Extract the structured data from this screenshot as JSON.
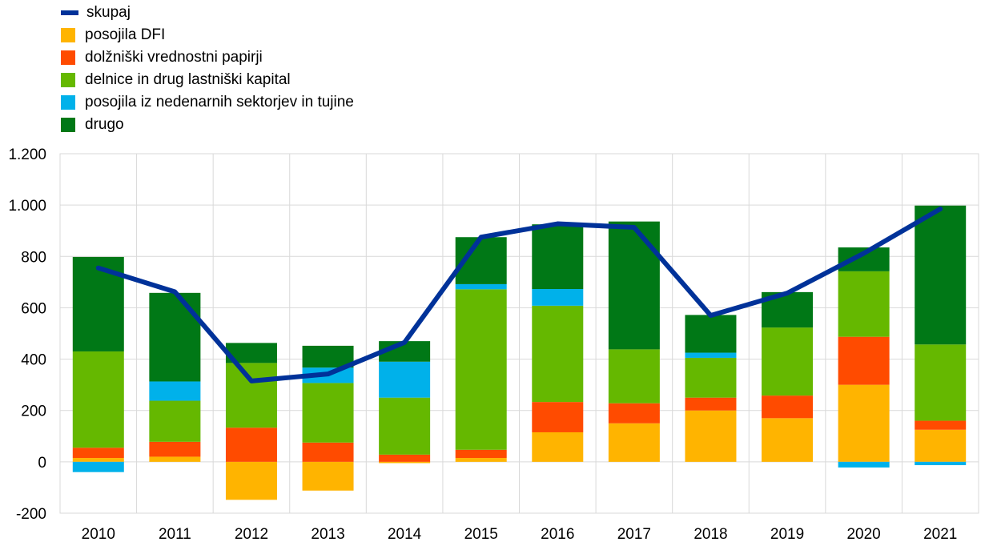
{
  "chart_data": {
    "type": "bar",
    "title": "",
    "xlabel": "",
    "ylabel": "",
    "categories": [
      "2010",
      "2011",
      "2012",
      "2013",
      "2014",
      "2015",
      "2016",
      "2017",
      "2018",
      "2019",
      "2020",
      "2021"
    ],
    "ylim": [
      -200,
      1200
    ],
    "yticks": [
      -200,
      0,
      200,
      400,
      600,
      800,
      1000,
      1200
    ],
    "ytick_labels": [
      "-200",
      "0",
      "200",
      "400",
      "600",
      "800",
      "1.000",
      "1.200"
    ],
    "grid": true,
    "legend_position": "top-left",
    "series": [
      {
        "name": "posojila DFI",
        "kind": "bar",
        "color": "#ffb400",
        "values": [
          15,
          20,
          -148,
          -112,
          -5,
          15,
          115,
          150,
          200,
          170,
          300,
          125
        ]
      },
      {
        "name": "dolžniški vrednostni papirji",
        "kind": "bar",
        "color": "#ff4b00",
        "values": [
          40,
          58,
          133,
          75,
          28,
          32,
          118,
          78,
          50,
          88,
          187,
          35
        ]
      },
      {
        "name": "delnice in drug lastniški kapital",
        "kind": "bar",
        "color": "#65b800",
        "values": [
          375,
          160,
          252,
          232,
          222,
          625,
          375,
          210,
          155,
          265,
          255,
          297
        ]
      },
      {
        "name": "posojila iz nedenarnih sektorjev in tujine",
        "kind": "bar",
        "color": "#00b1ea",
        "values": [
          -40,
          75,
          0,
          60,
          140,
          20,
          65,
          0,
          20,
          0,
          -22,
          -13
        ]
      },
      {
        "name": "drugo",
        "kind": "bar",
        "color": "#007816",
        "values": [
          368,
          345,
          78,
          85,
          80,
          183,
          252,
          498,
          147,
          138,
          93,
          541
        ]
      },
      {
        "name": "skupaj",
        "kind": "line",
        "color": "#003299",
        "values": [
          755,
          662,
          315,
          342,
          465,
          875,
          927,
          913,
          570,
          657,
          812,
          985
        ]
      }
    ]
  }
}
